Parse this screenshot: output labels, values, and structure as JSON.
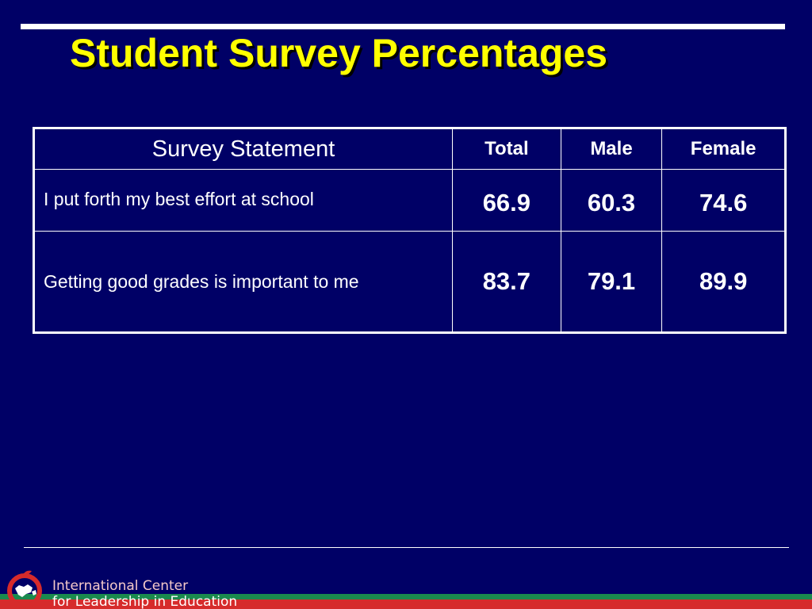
{
  "slide": {
    "title": "Student Survey Percentages"
  },
  "table": {
    "headers": {
      "statement": "Survey Statement",
      "total": "Total",
      "male": "Male",
      "female": "Female"
    },
    "rows": [
      {
        "statement": "I put forth my best effort at school",
        "total": "66.9",
        "male": "60.3",
        "female": "74.6"
      },
      {
        "statement": "Getting good grades is important to me",
        "total": "83.7",
        "male": "79.1",
        "female": "89.9"
      }
    ]
  },
  "footer": {
    "org_line1": "International Center",
    "org_line2": "for Leadership in Education"
  },
  "colors": {
    "background": "#000066",
    "title": "#ffff00",
    "band_green": "#1a8a4e",
    "band_red": "#d62b2b"
  },
  "icons": {
    "logo": "apple-logo-icon"
  }
}
